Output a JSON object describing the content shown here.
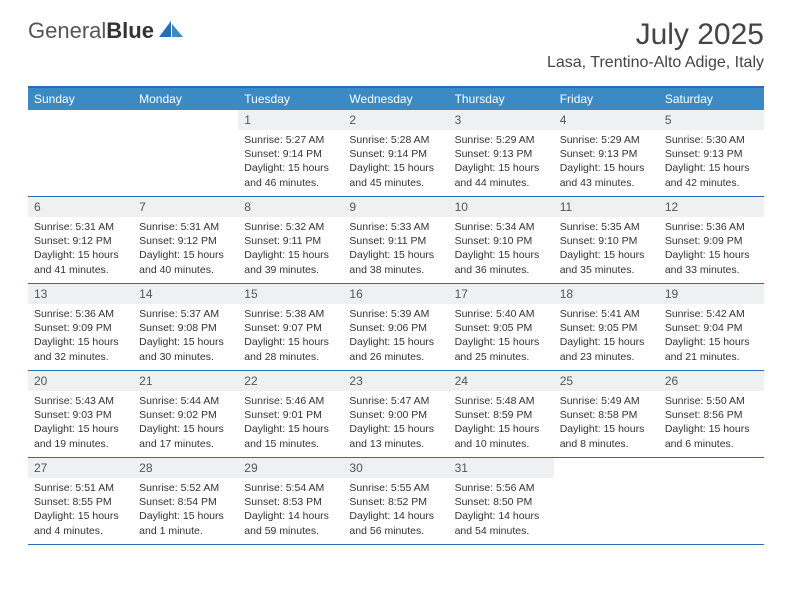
{
  "logo": {
    "part1": "General",
    "part2": "Blue"
  },
  "title": "July 2025",
  "location": "Lasa, Trentino-Alto Adige, Italy",
  "colors": {
    "header_bg": "#3b8ac4",
    "border": "#2a6db5",
    "daynum_bg": "#eef0f2",
    "text": "#333333"
  },
  "day_names": [
    "Sunday",
    "Monday",
    "Tuesday",
    "Wednesday",
    "Thursday",
    "Friday",
    "Saturday"
  ],
  "weeks": [
    [
      {
        "empty": true
      },
      {
        "empty": true
      },
      {
        "num": "1",
        "sunrise": "5:27 AM",
        "sunset": "9:14 PM",
        "daylight": "15 hours and 46 minutes."
      },
      {
        "num": "2",
        "sunrise": "5:28 AM",
        "sunset": "9:14 PM",
        "daylight": "15 hours and 45 minutes."
      },
      {
        "num": "3",
        "sunrise": "5:29 AM",
        "sunset": "9:13 PM",
        "daylight": "15 hours and 44 minutes."
      },
      {
        "num": "4",
        "sunrise": "5:29 AM",
        "sunset": "9:13 PM",
        "daylight": "15 hours and 43 minutes."
      },
      {
        "num": "5",
        "sunrise": "5:30 AM",
        "sunset": "9:13 PM",
        "daylight": "15 hours and 42 minutes."
      }
    ],
    [
      {
        "num": "6",
        "sunrise": "5:31 AM",
        "sunset": "9:12 PM",
        "daylight": "15 hours and 41 minutes."
      },
      {
        "num": "7",
        "sunrise": "5:31 AM",
        "sunset": "9:12 PM",
        "daylight": "15 hours and 40 minutes."
      },
      {
        "num": "8",
        "sunrise": "5:32 AM",
        "sunset": "9:11 PM",
        "daylight": "15 hours and 39 minutes."
      },
      {
        "num": "9",
        "sunrise": "5:33 AM",
        "sunset": "9:11 PM",
        "daylight": "15 hours and 38 minutes."
      },
      {
        "num": "10",
        "sunrise": "5:34 AM",
        "sunset": "9:10 PM",
        "daylight": "15 hours and 36 minutes."
      },
      {
        "num": "11",
        "sunrise": "5:35 AM",
        "sunset": "9:10 PM",
        "daylight": "15 hours and 35 minutes."
      },
      {
        "num": "12",
        "sunrise": "5:36 AM",
        "sunset": "9:09 PM",
        "daylight": "15 hours and 33 minutes."
      }
    ],
    [
      {
        "num": "13",
        "sunrise": "5:36 AM",
        "sunset": "9:09 PM",
        "daylight": "15 hours and 32 minutes."
      },
      {
        "num": "14",
        "sunrise": "5:37 AM",
        "sunset": "9:08 PM",
        "daylight": "15 hours and 30 minutes."
      },
      {
        "num": "15",
        "sunrise": "5:38 AM",
        "sunset": "9:07 PM",
        "daylight": "15 hours and 28 minutes."
      },
      {
        "num": "16",
        "sunrise": "5:39 AM",
        "sunset": "9:06 PM",
        "daylight": "15 hours and 26 minutes."
      },
      {
        "num": "17",
        "sunrise": "5:40 AM",
        "sunset": "9:05 PM",
        "daylight": "15 hours and 25 minutes."
      },
      {
        "num": "18",
        "sunrise": "5:41 AM",
        "sunset": "9:05 PM",
        "daylight": "15 hours and 23 minutes."
      },
      {
        "num": "19",
        "sunrise": "5:42 AM",
        "sunset": "9:04 PM",
        "daylight": "15 hours and 21 minutes."
      }
    ],
    [
      {
        "num": "20",
        "sunrise": "5:43 AM",
        "sunset": "9:03 PM",
        "daylight": "15 hours and 19 minutes."
      },
      {
        "num": "21",
        "sunrise": "5:44 AM",
        "sunset": "9:02 PM",
        "daylight": "15 hours and 17 minutes."
      },
      {
        "num": "22",
        "sunrise": "5:46 AM",
        "sunset": "9:01 PM",
        "daylight": "15 hours and 15 minutes."
      },
      {
        "num": "23",
        "sunrise": "5:47 AM",
        "sunset": "9:00 PM",
        "daylight": "15 hours and 13 minutes."
      },
      {
        "num": "24",
        "sunrise": "5:48 AM",
        "sunset": "8:59 PM",
        "daylight": "15 hours and 10 minutes."
      },
      {
        "num": "25",
        "sunrise": "5:49 AM",
        "sunset": "8:58 PM",
        "daylight": "15 hours and 8 minutes."
      },
      {
        "num": "26",
        "sunrise": "5:50 AM",
        "sunset": "8:56 PM",
        "daylight": "15 hours and 6 minutes."
      }
    ],
    [
      {
        "num": "27",
        "sunrise": "5:51 AM",
        "sunset": "8:55 PM",
        "daylight": "15 hours and 4 minutes."
      },
      {
        "num": "28",
        "sunrise": "5:52 AM",
        "sunset": "8:54 PM",
        "daylight": "15 hours and 1 minute."
      },
      {
        "num": "29",
        "sunrise": "5:54 AM",
        "sunset": "8:53 PM",
        "daylight": "14 hours and 59 minutes."
      },
      {
        "num": "30",
        "sunrise": "5:55 AM",
        "sunset": "8:52 PM",
        "daylight": "14 hours and 56 minutes."
      },
      {
        "num": "31",
        "sunrise": "5:56 AM",
        "sunset": "8:50 PM",
        "daylight": "14 hours and 54 minutes."
      },
      {
        "empty": true
      },
      {
        "empty": true
      }
    ]
  ],
  "labels": {
    "sunrise": "Sunrise:",
    "sunset": "Sunset:",
    "daylight": "Daylight:"
  }
}
